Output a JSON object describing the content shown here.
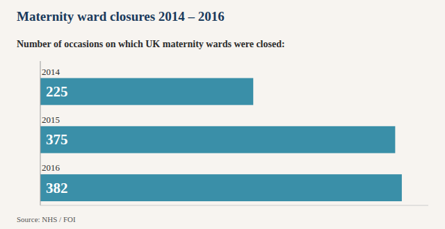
{
  "chart_data": {
    "type": "bar",
    "orientation": "horizontal",
    "title": "Maternity ward closures 2014 – 2016",
    "subtitle": "Number of occasions on which UK maternity wards were closed:",
    "annotations": [
      "Source: NHS / FOI"
    ],
    "categories": [
      "2014",
      "2015",
      "2016"
    ],
    "values": [
      225,
      375,
      382
    ],
    "color": "#3a8fa8",
    "xlim": [
      0,
      410
    ],
    "data_labels": true,
    "tick_labels": false,
    "grid": false
  }
}
